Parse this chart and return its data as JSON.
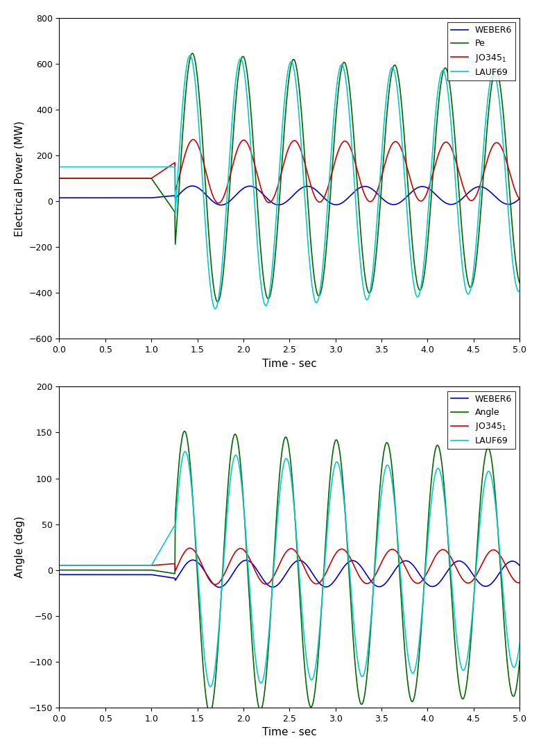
{
  "top_plot": {
    "ylabel": "Electrical Power (MW)",
    "xlabel": "Time - sec",
    "xlim": [
      0,
      5
    ],
    "ylim": [
      -600,
      800
    ],
    "yticks": [
      -600,
      -400,
      -200,
      0,
      200,
      400,
      600,
      800
    ],
    "xticks": [
      0,
      0.5,
      1.0,
      1.5,
      2.0,
      2.5,
      3.0,
      3.5,
      4.0,
      4.5,
      5.0
    ],
    "colors": {
      "WEBER6": "#0000cc",
      "Pe": "#006600",
      "JO345": "#cc0000",
      "LAUF69": "#00cccc"
    }
  },
  "bottom_plot": {
    "ylabel": "Angle (deg)",
    "xlabel": "Time - sec",
    "xlim": [
      0,
      5
    ],
    "ylim": [
      -150,
      200
    ],
    "yticks": [
      -150,
      -100,
      -50,
      0,
      50,
      100,
      150,
      200
    ],
    "xticks": [
      0,
      0.5,
      1.0,
      1.5,
      2.0,
      2.5,
      3.0,
      3.5,
      4.0,
      4.5,
      5.0
    ],
    "colors": {
      "WEBER6": "#0000cc",
      "Angle": "#006600",
      "JO345": "#cc0000",
      "LAUF69": "#00cccc"
    }
  },
  "fault_time": 1.0,
  "clear_time": 1.26,
  "t_end": 5.0,
  "dt": 0.005
}
